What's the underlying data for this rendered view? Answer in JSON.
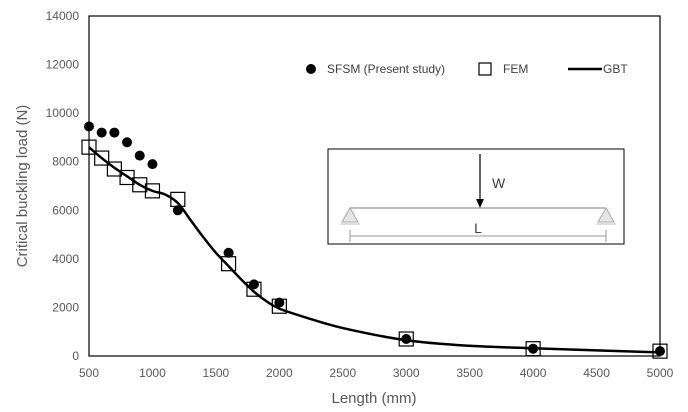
{
  "chart_data": {
    "type": "scatter",
    "xlabel": "Length (mm)",
    "ylabel": "Critical buckling load (N)",
    "xlim": [
      500,
      5000
    ],
    "ylim": [
      0,
      14000
    ],
    "x_ticks": [
      500,
      1000,
      1500,
      2000,
      2500,
      3000,
      3500,
      4000,
      4500,
      5000
    ],
    "y_ticks": [
      0,
      2000,
      4000,
      6000,
      8000,
      10000,
      12000,
      14000
    ],
    "grid": false,
    "legend_position": "top-right",
    "series": [
      {
        "name": "SFSM (Present study)",
        "marker": "filled-circle",
        "color": "#000000",
        "x": [
          500,
          600,
          700,
          800,
          900,
          1000,
          1200,
          1600,
          1800,
          2000,
          3000,
          4000,
          5000
        ],
        "y": [
          9450,
          9200,
          9200,
          8800,
          8250,
          7900,
          6000,
          4250,
          2950,
          2200,
          700,
          300,
          200
        ]
      },
      {
        "name": "FEM",
        "marker": "open-square",
        "color": "#000000",
        "x": [
          500,
          600,
          700,
          800,
          900,
          1000,
          1200,
          1600,
          1800,
          2000,
          3000,
          4000,
          5000
        ],
        "y": [
          8600,
          8150,
          7700,
          7350,
          7050,
          6800,
          6450,
          3800,
          2750,
          2050,
          700,
          300,
          200
        ]
      },
      {
        "name": "GBT",
        "marker": "line",
        "color": "#000000",
        "x": [
          500,
          600,
          700,
          800,
          900,
          1000,
          1100,
          1200,
          1300,
          1400,
          1500,
          1600,
          1700,
          1800,
          1900,
          2000,
          2200,
          2500,
          3000,
          3500,
          4000,
          4500,
          5000
        ],
        "y": [
          8600,
          8150,
          7750,
          7400,
          7050,
          6800,
          6650,
          6300,
          5600,
          4900,
          4250,
          3700,
          3150,
          2650,
          2250,
          1950,
          1600,
          1150,
          650,
          420,
          320,
          230,
          150
        ]
      }
    ],
    "inset": {
      "load_label": "W",
      "span_label": "L"
    }
  }
}
